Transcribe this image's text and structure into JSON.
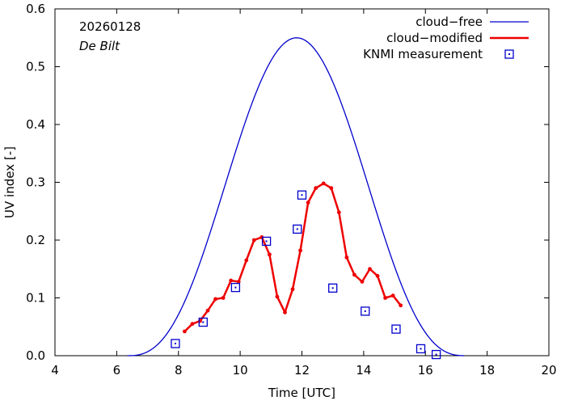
{
  "chart_data": {
    "type": "line",
    "xlabel": "Time  [UTC]",
    "ylabel": "UV index  [-]",
    "xlim": [
      4,
      20
    ],
    "ylim": [
      0,
      0.6
    ],
    "xticks": [
      4,
      6,
      8,
      10,
      12,
      14,
      16,
      18,
      20
    ],
    "yticks": [
      0.0,
      0.1,
      0.2,
      0.3,
      0.4,
      0.5,
      0.6
    ],
    "ytick_labels": [
      "0.0",
      "0.1",
      "0.2",
      "0.3",
      "0.4",
      "0.5",
      "0.6"
    ],
    "grid": false,
    "legend_position": "top-right",
    "annotations": {
      "date": "20260128",
      "location": "De Bilt"
    },
    "series": [
      {
        "name": "cloud−free",
        "style": "line",
        "color": "#0000cc",
        "peak_time": 11.83,
        "peak_value": 0.55,
        "start_time": 6.35,
        "end_time": 17.3
      },
      {
        "name": "cloud−modified",
        "style": "line-points",
        "color": "#ee0000",
        "x": [
          8.2,
          8.45,
          8.7,
          8.95,
          9.2,
          9.45,
          9.7,
          9.95,
          10.2,
          10.45,
          10.7,
          10.95,
          11.2,
          11.45,
          11.7,
          11.95,
          12.2,
          12.45,
          12.7,
          12.95,
          13.2,
          13.45,
          13.7,
          13.95,
          14.2,
          14.45,
          14.7,
          14.95,
          15.2
        ],
        "y": [
          0.042,
          0.055,
          0.06,
          0.078,
          0.098,
          0.1,
          0.13,
          0.128,
          0.165,
          0.2,
          0.205,
          0.175,
          0.102,
          0.075,
          0.115,
          0.182,
          0.265,
          0.29,
          0.298,
          0.29,
          0.248,
          0.17,
          0.14,
          0.128,
          0.15,
          0.138,
          0.1,
          0.104,
          0.087
        ]
      },
      {
        "name": "KNMI measurement",
        "style": "markers",
        "color": "#0000cc",
        "x": [
          7.9,
          8.8,
          9.85,
          10.85,
          11.85,
          12.0,
          13.0,
          14.05,
          15.05,
          15.85,
          16.35
        ],
        "y": [
          0.021,
          0.058,
          0.118,
          0.198,
          0.219,
          0.278,
          0.117,
          0.077,
          0.046,
          0.012,
          0.002
        ]
      }
    ]
  }
}
